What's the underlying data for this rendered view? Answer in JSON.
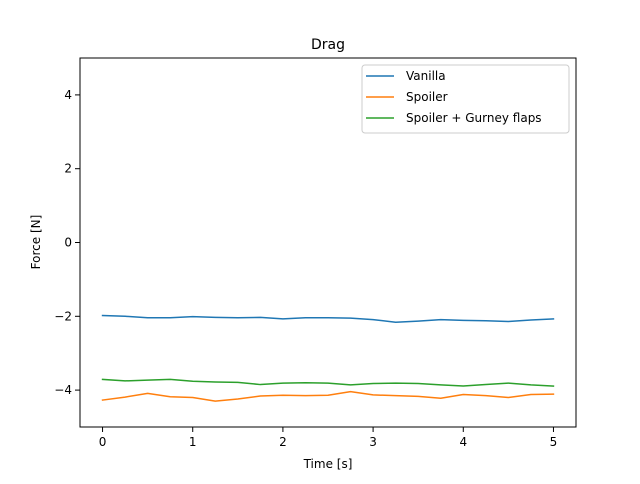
{
  "chart_data": {
    "type": "line",
    "title": "Drag",
    "xlabel": "Time [s]",
    "ylabel": "Force [N]",
    "xlim": [
      -0.25,
      5.25
    ],
    "ylim": [
      -5,
      5
    ],
    "x_ticks": [
      0,
      1,
      2,
      3,
      4,
      5
    ],
    "y_ticks": [
      -4,
      -2,
      0,
      2,
      4
    ],
    "x_tick_labels": [
      "0",
      "1",
      "2",
      "3",
      "4",
      "5"
    ],
    "y_tick_labels": [
      "−4",
      "−2",
      "0",
      "2",
      "4"
    ],
    "legend_position": "top-right",
    "grid": false,
    "x": [
      0,
      0.25,
      0.5,
      0.75,
      1.0,
      1.25,
      1.5,
      1.75,
      2.0,
      2.25,
      2.5,
      2.75,
      3.0,
      3.25,
      3.5,
      3.75,
      4.0,
      4.25,
      4.5,
      4.75,
      5.0
    ],
    "series": [
      {
        "name": "Vanilla",
        "color": "#1f77b4",
        "values": [
          -1.98,
          -2.0,
          -2.04,
          -2.04,
          -2.01,
          -2.03,
          -2.04,
          -2.03,
          -2.07,
          -2.04,
          -2.04,
          -2.05,
          -2.09,
          -2.16,
          -2.13,
          -2.09,
          -2.11,
          -2.12,
          -2.14,
          -2.1,
          -2.07
        ]
      },
      {
        "name": "Spoiler",
        "color": "#ff7f0e",
        "values": [
          -4.27,
          -4.19,
          -4.09,
          -4.18,
          -4.2,
          -4.3,
          -4.24,
          -4.16,
          -4.14,
          -4.15,
          -4.14,
          -4.04,
          -4.13,
          -4.15,
          -4.17,
          -4.22,
          -4.12,
          -4.15,
          -4.2,
          -4.12,
          -4.11
        ]
      },
      {
        "name": "Spoiler + Gurney flaps",
        "color": "#2ca02c",
        "values": [
          -3.71,
          -3.75,
          -3.73,
          -3.71,
          -3.76,
          -3.78,
          -3.79,
          -3.85,
          -3.81,
          -3.8,
          -3.81,
          -3.86,
          -3.82,
          -3.81,
          -3.82,
          -3.86,
          -3.89,
          -3.85,
          -3.81,
          -3.86,
          -3.89
        ]
      }
    ]
  }
}
